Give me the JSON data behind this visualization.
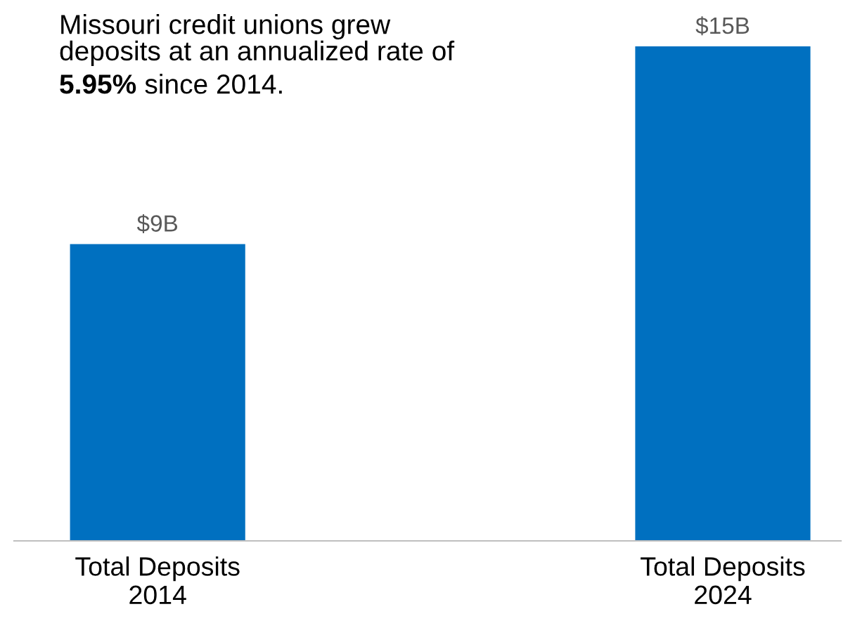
{
  "chart_data": {
    "type": "bar",
    "categories": [
      "Total Deposits\n2014",
      "Total Deposits\n2024"
    ],
    "values": [
      9,
      15
    ],
    "value_labels": [
      "$9B",
      "$15B"
    ],
    "color": "#0070c0",
    "annotations": [
      "Missouri credit unions grew\ndeposits at an annualized rate of",
      "5.95%",
      "since 2014."
    ],
    "grid": false,
    "legend": false
  }
}
